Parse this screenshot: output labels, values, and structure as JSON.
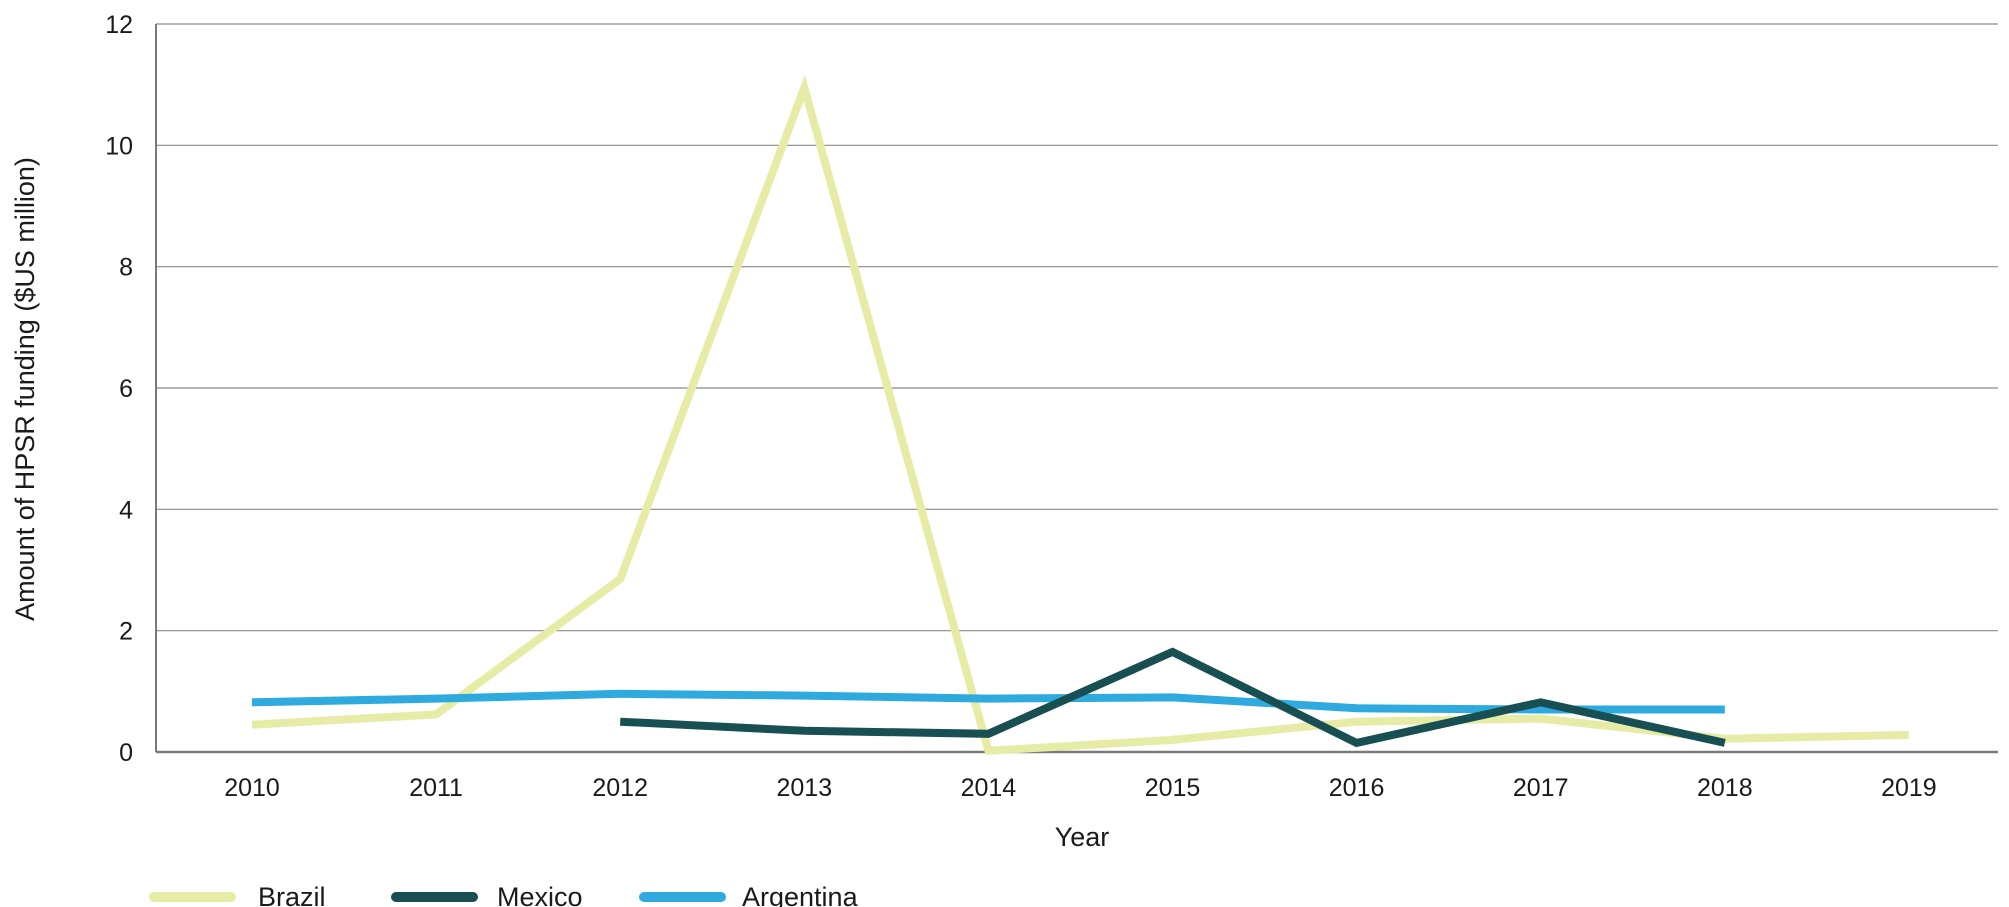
{
  "chart_data": {
    "type": "line",
    "title": "",
    "xlabel": "Year",
    "ylabel": "Amount of HPSR funding ($US million)",
    "categories": [
      "2010",
      "2011",
      "2012",
      "2013",
      "2014",
      "2015",
      "2016",
      "2017",
      "2018",
      "2019"
    ],
    "ylim": [
      0,
      12
    ],
    "yticks": [
      0,
      2,
      4,
      6,
      8,
      10,
      12
    ],
    "grid": true,
    "legend_position": "bottom-left",
    "series": [
      {
        "name": "Brazil",
        "color": "#e6eca6",
        "values": [
          0.45,
          0.62,
          2.85,
          10.95,
          0.02,
          0.2,
          0.5,
          0.55,
          0.22,
          0.28
        ]
      },
      {
        "name": "Mexico",
        "color": "#174f52",
        "values": [
          null,
          null,
          0.5,
          0.35,
          0.3,
          1.65,
          0.15,
          0.82,
          0.15,
          null
        ]
      },
      {
        "name": "Argentina",
        "color": "#2eaadf",
        "values": [
          0.82,
          0.88,
          0.96,
          0.93,
          0.88,
          0.9,
          0.72,
          0.7,
          0.7,
          null
        ]
      }
    ]
  }
}
